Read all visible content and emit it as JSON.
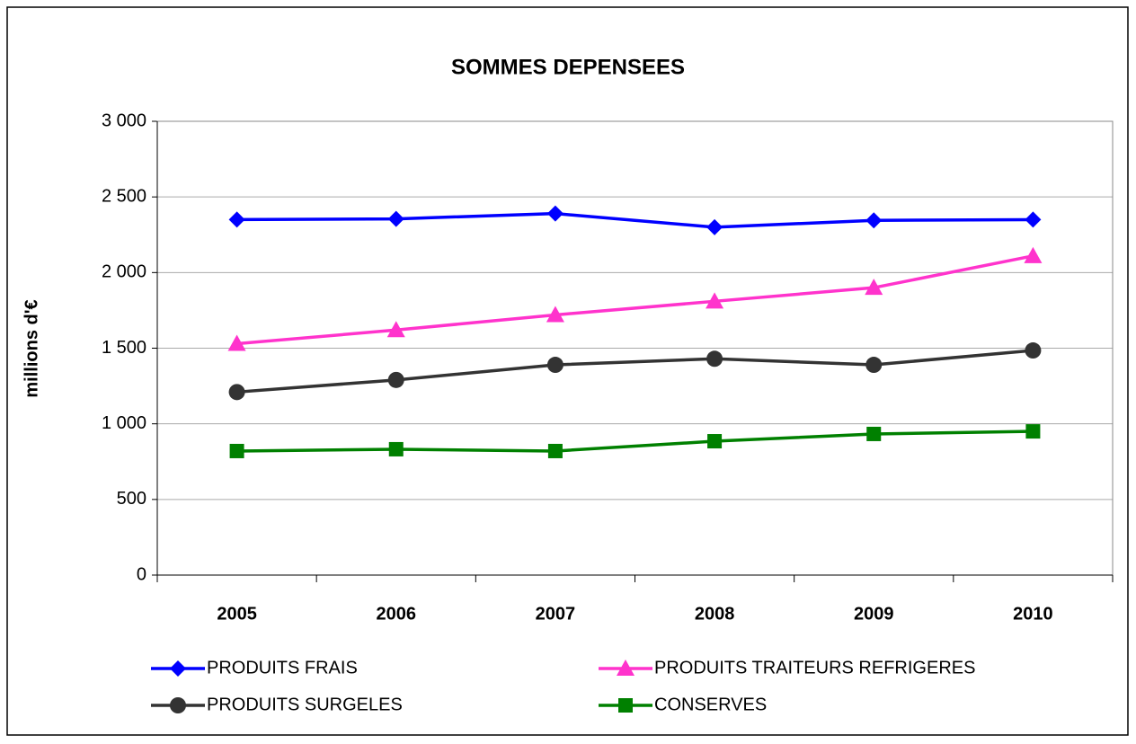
{
  "chart_data": {
    "type": "line",
    "title": "SOMMES DEPENSEES",
    "y_label": "millions d'€",
    "categories": [
      "2005",
      "2006",
      "2007",
      "2008",
      "2009",
      "2010"
    ],
    "series": [
      {
        "name": "PRODUITS FRAIS",
        "color": "#0000ff",
        "marker": "diamond",
        "values": [
          2350,
          2355,
          2390,
          2300,
          2345,
          2350
        ]
      },
      {
        "name": "PRODUITS TRAITEURS REFRIGERES",
        "color": "#ff33cc",
        "marker": "triangle",
        "values": [
          1530,
          1620,
          1720,
          1810,
          1900,
          2110
        ]
      },
      {
        "name": "PRODUITS SURGELES",
        "color": "#333333",
        "marker": "circle",
        "values": [
          1210,
          1290,
          1390,
          1430,
          1390,
          1485
        ]
      },
      {
        "name": "CONSERVES",
        "color": "#008000",
        "marker": "square",
        "values": [
          820,
          832,
          820,
          885,
          933,
          950
        ]
      }
    ],
    "ylim": [
      0,
      3000
    ],
    "yticks": [
      0,
      500,
      {
        "value": 1000,
        "label": "1 000"
      },
      {
        "value": 1500,
        "label": "1 500"
      },
      {
        "value": 2000,
        "label": "2 000"
      },
      {
        "value": 2500,
        "label": "2 500"
      },
      {
        "value": 3000,
        "label": "3 000"
      }
    ],
    "grid": true
  }
}
